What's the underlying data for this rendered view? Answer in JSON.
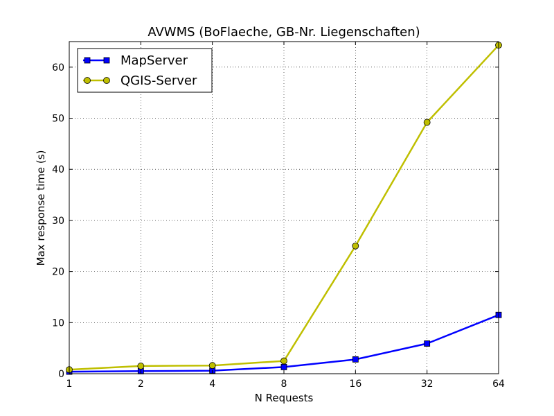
{
  "chart_data": {
    "type": "line",
    "title": "AVWMS (BoFlaeche, GB-Nr. Liegenschaften)",
    "xlabel": "N Requests",
    "ylabel": "Max response time (s)",
    "x_scale": "log2",
    "x": [
      1,
      2,
      4,
      8,
      16,
      32,
      64
    ],
    "xticks": [
      "1",
      "2",
      "4",
      "8",
      "16",
      "32",
      "64"
    ],
    "yticks": [
      "0",
      "10",
      "20",
      "30",
      "40",
      "50",
      "60"
    ],
    "xlim": [
      1,
      64
    ],
    "ylim": [
      0,
      65
    ],
    "grid": true,
    "legend_position": "top-left",
    "series": [
      {
        "name": "MapServer",
        "color": "#0000ff",
        "marker": "square",
        "values": [
          0.4,
          0.5,
          0.6,
          1.3,
          2.8,
          5.9,
          11.5
        ]
      },
      {
        "name": "QGIS-Server",
        "color": "#bfbf00",
        "marker": "circle",
        "values": [
          0.8,
          1.5,
          1.6,
          2.5,
          25.0,
          49.2,
          64.3
        ]
      }
    ]
  }
}
